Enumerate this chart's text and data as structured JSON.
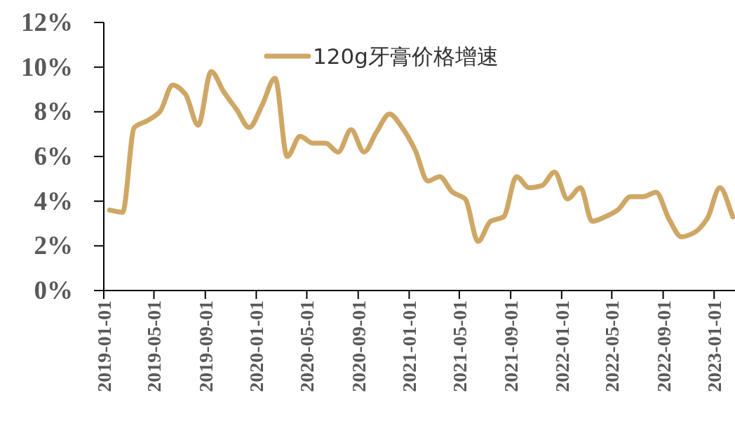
{
  "chart_data": {
    "type": "line",
    "x": [
      "2019-01-15",
      "2019-02-15",
      "2019-03-15",
      "2019-04-15",
      "2019-05-15",
      "2019-06-15",
      "2019-07-15",
      "2019-08-15",
      "2019-09-15",
      "2019-10-15",
      "2019-11-15",
      "2019-12-15",
      "2020-01-15",
      "2020-02-15",
      "2020-03-15",
      "2020-04-15",
      "2020-05-15",
      "2020-06-15",
      "2020-07-15",
      "2020-08-15",
      "2020-09-15",
      "2020-10-15",
      "2020-11-15",
      "2020-12-15",
      "2021-01-15",
      "2021-02-15",
      "2021-03-15",
      "2021-04-15",
      "2021-05-15",
      "2021-06-15",
      "2021-07-15",
      "2021-08-15",
      "2021-09-15",
      "2021-10-15",
      "2021-11-15",
      "2021-12-15",
      "2022-01-15",
      "2022-02-15",
      "2022-03-15",
      "2022-04-15",
      "2022-05-15",
      "2022-06-15",
      "2022-07-15",
      "2022-08-15",
      "2022-09-15",
      "2022-10-15",
      "2022-11-15",
      "2022-12-15",
      "2023-01-15",
      "2023-02-15"
    ],
    "series": [
      {
        "name": "120g牙膏价格增速",
        "color": "#cfa765",
        "values": [
          3.6,
          3.5,
          7.3,
          7.6,
          8.0,
          9.2,
          8.8,
          7.4,
          9.8,
          8.9,
          8.1,
          7.3,
          8.3,
          9.5,
          6.0,
          6.9,
          6.6,
          6.6,
          6.2,
          7.2,
          6.2,
          7.1,
          7.9,
          7.3,
          6.3,
          4.9,
          5.1,
          4.4,
          4.1,
          2.2,
          3.1,
          3.3,
          5.1,
          4.6,
          4.7,
          5.3,
          4.1,
          4.6,
          3.1,
          3.3,
          3.6,
          4.2,
          4.2,
          4.4,
          3.2,
          2.4,
          2.6,
          3.2,
          4.6,
          3.3
        ]
      }
    ],
    "xlim": [
      "2019-01-01",
      "2023-02-20"
    ],
    "xticks": [
      "2019-01-01",
      "2019-05-01",
      "2019-09-01",
      "2020-01-01",
      "2020-05-01",
      "2020-09-01",
      "2021-01-01",
      "2021-05-01",
      "2021-09-01",
      "2022-01-01",
      "2022-05-01",
      "2022-09-01",
      "2023-01-01"
    ],
    "ylim": [
      0,
      12
    ],
    "yticks": [
      {
        "value": 0,
        "label": "0%"
      },
      {
        "value": 2,
        "label": "2%"
      },
      {
        "value": 4,
        "label": "4%"
      },
      {
        "value": 6,
        "label": "6%"
      },
      {
        "value": 8,
        "label": "8%"
      },
      {
        "value": 10,
        "label": "10%"
      },
      {
        "value": 12,
        "label": "12%"
      }
    ],
    "legend": "top"
  }
}
